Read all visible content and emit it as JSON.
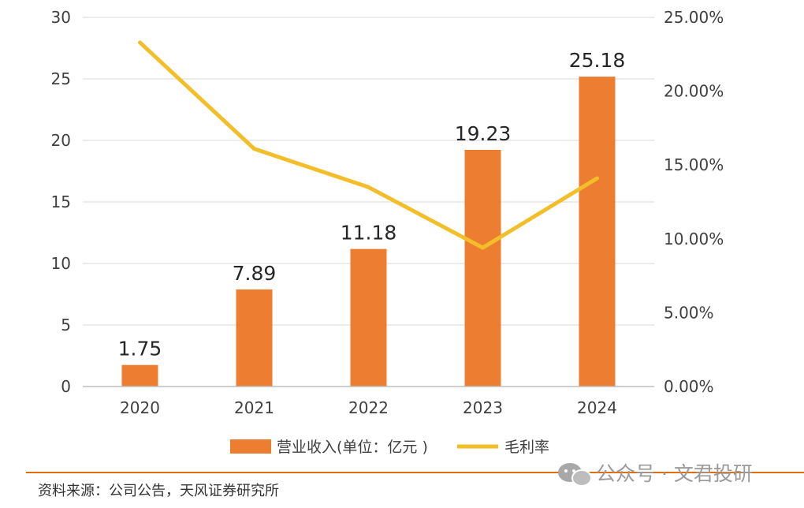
{
  "chart_data": {
    "type": "bar+line",
    "categories": [
      "2020",
      "2021",
      "2022",
      "2023",
      "2024"
    ],
    "series": [
      {
        "name": "营业收入(单位：亿元 )",
        "type": "bar",
        "axis": "left",
        "values": [
          1.75,
          7.89,
          11.18,
          19.23,
          25.18
        ],
        "value_labels": [
          "1.75",
          "7.89",
          "11.18",
          "19.23",
          "25.18"
        ],
        "color": "#ED7D31"
      },
      {
        "name": "毛利率",
        "type": "line",
        "axis": "right",
        "values": [
          23.3,
          16.1,
          13.5,
          9.4,
          14.1
        ],
        "color": "#F2BE2A"
      }
    ],
    "y_left": {
      "range": [
        0,
        30
      ],
      "ticks": [
        0,
        5,
        10,
        15,
        20,
        25,
        30
      ],
      "tick_labels": [
        "0",
        "5",
        "10",
        "15",
        "20",
        "25",
        "30"
      ]
    },
    "y_right": {
      "range": [
        0,
        25
      ],
      "ticks": [
        0,
        5,
        10,
        15,
        20,
        25
      ],
      "tick_labels": [
        "0.00%",
        "5.00%",
        "10.00%",
        "15.00%",
        "20.00%",
        "25.00%"
      ]
    },
    "grid": true,
    "legend_position": "bottom"
  },
  "footer": {
    "source": "资料来源：公司公告，天风证券研究所",
    "watermark": "公众号 · 文君投研",
    "rule_color": "#E46C0A"
  },
  "icons": {
    "watermark_icon": "wechat-icon"
  }
}
